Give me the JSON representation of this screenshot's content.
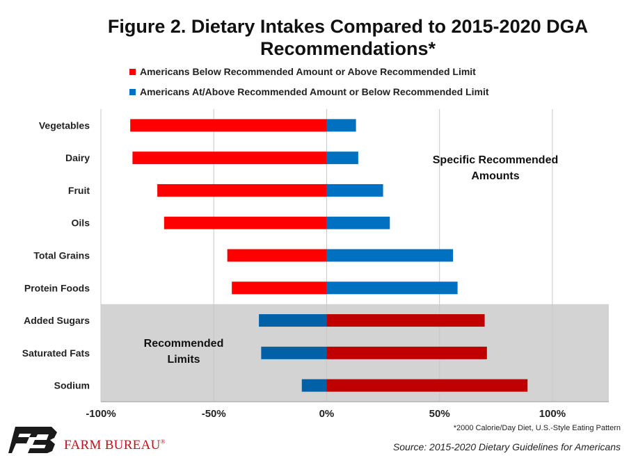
{
  "title": "Figure 2. Dietary Intakes Compared to 2015-2020 DGA Recommendations*",
  "legend": [
    {
      "label": "Americans Below Recommended Amount or Above Recommended Limit",
      "color": "#ff0000"
    },
    {
      "label": "Americans At/Above Recommended Amount or Below Recommended Limit",
      "color": "#0070c0"
    }
  ],
  "annotations": {
    "specific": "Specific Recommended Amounts",
    "limits": "Recommended Limits"
  },
  "footnote": "*2000 Calorie/Day Diet, U.S.-Style Eating Pattern",
  "source": "Source: 2015-2020 Dietary Guidelines for Americans",
  "brand": {
    "name": "FARM BUREAU",
    "mark": "®"
  },
  "chart_data": {
    "type": "bar",
    "orientation": "horizontal",
    "categories": [
      "Vegetables",
      "Dairy",
      "Fruit",
      "Oils",
      "Total Grains",
      "Protein Foods",
      "Added Sugars",
      "Saturated Fats",
      "Sodium"
    ],
    "series": [
      {
        "name": "Americans Below Recommended Amount or Above Recommended Limit",
        "values": [
          -87,
          -86,
          -75,
          -72,
          -44,
          -42,
          70,
          71,
          89
        ]
      },
      {
        "name": "Americans At/Above Recommended Amount or Below Recommended Limit",
        "values": [
          13,
          14,
          25,
          28,
          56,
          58,
          -30,
          -29,
          -11
        ]
      }
    ],
    "bar_colors": {
      "specific_below": "#ff0000",
      "specific_above": "#0070c0",
      "limits_above": "#c00000",
      "limits_below": "#0060a8"
    },
    "shaded_region_categories": [
      "Added Sugars",
      "Saturated Fats",
      "Sodium"
    ],
    "shaded_color": "#d3d3d3",
    "xlim": [
      -100,
      125
    ],
    "xticks": [
      -100,
      -50,
      0,
      50,
      100
    ],
    "xtick_labels": [
      "-100%",
      "-50%",
      "0%",
      "50%",
      "100%"
    ],
    "grid": true
  }
}
